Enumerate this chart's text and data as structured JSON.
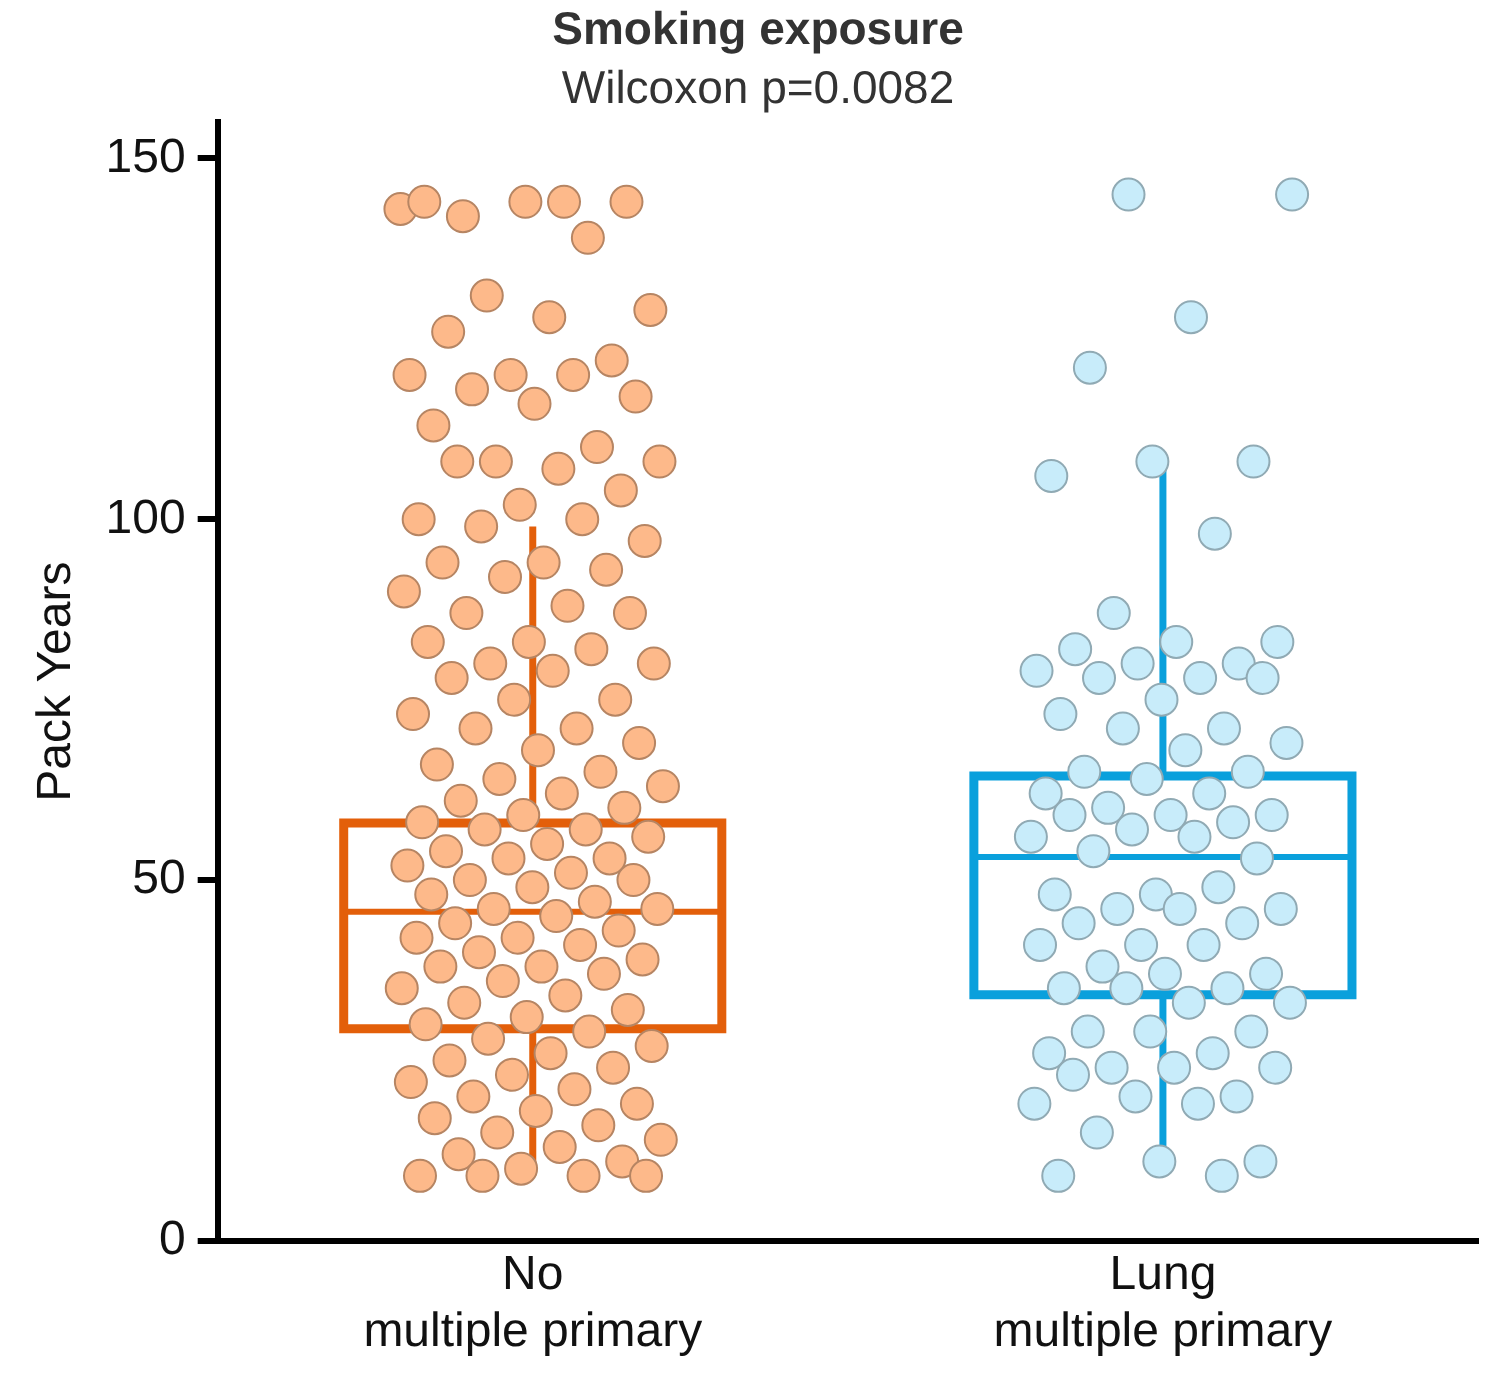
{
  "chart_data": {
    "type": "box",
    "title": "Smoking exposure",
    "subtitle": "Wilcoxon p=0.0082",
    "ylabel": "Pack Years",
    "categories": [
      "No\nmultiple primary",
      "Lung\nmultiple primary"
    ],
    "colors": [
      "#e35f0a",
      "#0aa0dc"
    ],
    "boxes": [
      {
        "low": 9,
        "q1": 29.4,
        "median": 45.6,
        "q3": 57.9,
        "high": 99
      },
      {
        "low": 12,
        "q1": 34.1,
        "median": 53.2,
        "q3": 64.4,
        "high": 108
      }
    ],
    "ylim": [
      0,
      155
    ],
    "yticks": [
      0,
      50,
      100,
      150
    ],
    "grid": false,
    "legend": false,
    "marker": "circle",
    "series": [
      {
        "type": "scatter",
        "color": "#fdb98a",
        "values": [
          143,
          144,
          142,
          144,
          144,
          144,
          139,
          131,
          129,
          128,
          126,
          122,
          120,
          120,
          120,
          118,
          117,
          116,
          113,
          110,
          108,
          108,
          107,
          108,
          104,
          102,
          100,
          100,
          99,
          97,
          94,
          94,
          93,
          92,
          90,
          88,
          87,
          87,
          83,
          83,
          82,
          80,
          80,
          79,
          78,
          75,
          75,
          73,
          71,
          71,
          69,
          68,
          66,
          65,
          64,
          63,
          62,
          61,
          60,
          59,
          58,
          57,
          57,
          56,
          55,
          54,
          53,
          53,
          52,
          51,
          50,
          50,
          49,
          48,
          47,
          46,
          46,
          45,
          44,
          43,
          42,
          42,
          41,
          40,
          39,
          38,
          38,
          37,
          36,
          35,
          34,
          33,
          32,
          31,
          30,
          29,
          28,
          27,
          26,
          25,
          24,
          23,
          22,
          21,
          20,
          19,
          18,
          17,
          16,
          15,
          14,
          13,
          12,
          11,
          10,
          9,
          9,
          9,
          9
        ],
        "x": [
          "No\nmultiple primary",
          "No\nmultiple primary",
          "No\nmultiple primary",
          "No\nmultiple primary",
          "No\nmultiple primary",
          "No\nmultiple primary",
          "No\nmultiple primary",
          "No\nmultiple primary",
          "No\nmultiple primary",
          "No\nmultiple primary",
          "No\nmultiple primary",
          "No\nmultiple primary",
          "No\nmultiple primary",
          "No\nmultiple primary",
          "No\nmultiple primary",
          "No\nmultiple primary",
          "No\nmultiple primary",
          "No\nmultiple primary",
          "No\nmultiple primary",
          "No\nmultiple primary",
          "No\nmultiple primary",
          "No\nmultiple primary",
          "No\nmultiple primary",
          "No\nmultiple primary",
          "No\nmultiple primary",
          "No\nmultiple primary",
          "No\nmultiple primary",
          "No\nmultiple primary",
          "No\nmultiple primary",
          "No\nmultiple primary",
          "No\nmultiple primary",
          "No\nmultiple primary",
          "No\nmultiple primary",
          "No\nmultiple primary",
          "No\nmultiple primary",
          "No\nmultiple primary",
          "No\nmultiple primary",
          "No\nmultiple primary",
          "No\nmultiple primary",
          "No\nmultiple primary",
          "No\nmultiple primary",
          "No\nmultiple primary",
          "No\nmultiple primary",
          "No\nmultiple primary",
          "No\nmultiple primary",
          "No\nmultiple primary",
          "No\nmultiple primary",
          "No\nmultiple primary",
          "No\nmultiple primary",
          "No\nmultiple primary",
          "No\nmultiple primary",
          "No\nmultiple primary",
          "No\nmultiple primary",
          "No\nmultiple primary",
          "No\nmultiple primary",
          "No\nmultiple primary",
          "No\nmultiple primary",
          "No\nmultiple primary",
          "No\nmultiple primary",
          "No\nmultiple primary",
          "No\nmultiple primary",
          "No\nmultiple primary",
          "No\nmultiple primary",
          "No\nmultiple primary",
          "No\nmultiple primary",
          "No\nmultiple primary",
          "No\nmultiple primary",
          "No\nmultiple primary",
          "No\nmultiple primary",
          "No\nmultiple primary",
          "No\nmultiple primary",
          "No\nmultiple primary",
          "No\nmultiple primary",
          "No\nmultiple primary",
          "No\nmultiple primary",
          "No\nmultiple primary",
          "No\nmultiple primary",
          "No\nmultiple primary",
          "No\nmultiple primary",
          "No\nmultiple primary",
          "No\nmultiple primary",
          "No\nmultiple primary",
          "No\nmultiple primary",
          "No\nmultiple primary",
          "No\nmultiple primary",
          "No\nmultiple primary",
          "No\nmultiple primary",
          "No\nmultiple primary",
          "No\nmultiple primary",
          "No\nmultiple primary",
          "No\nmultiple primary",
          "No\nmultiple primary",
          "No\nmultiple primary",
          "No\nmultiple primary",
          "No\nmultiple primary",
          "No\nmultiple primary",
          "No\nmultiple primary",
          "No\nmultiple primary",
          "No\nmultiple primary",
          "No\nmultiple primary",
          "No\nmultiple primary",
          "No\nmultiple primary",
          "No\nmultiple primary",
          "No\nmultiple primary",
          "No\nmultiple primary",
          "No\nmultiple primary",
          "No\nmultiple primary",
          "No\nmultiple primary",
          "No\nmultiple primary",
          "No\nmultiple primary",
          "No\nmultiple primary",
          "No\nmultiple primary",
          "No\nmultiple primary",
          "No\nmultiple primary",
          "No\nmultiple primary",
          "No\nmultiple primary",
          "No\nmultiple primary",
          "No\nmultiple primary",
          "No\nmultiple primary"
        ]
      },
      {
        "type": "scatter",
        "color": "#c8ecfa",
        "values": [
          145,
          145,
          128,
          121,
          108,
          108,
          106,
          98,
          87,
          83,
          83,
          82,
          80,
          80,
          79,
          78,
          78,
          78,
          75,
          73,
          71,
          71,
          69,
          68,
          65,
          65,
          64,
          62,
          62,
          60,
          59,
          59,
          59,
          58,
          57,
          56,
          56,
          54,
          53,
          48,
          48,
          49,
          46,
          46,
          46,
          44,
          44,
          41,
          41,
          41,
          38,
          37,
          37,
          35,
          35,
          35,
          33,
          33,
          29,
          29,
          29,
          26,
          26,
          24,
          24,
          24,
          23,
          20,
          20,
          19,
          19,
          15,
          11,
          11,
          9,
          9
        ],
        "x": [
          "Lung\nmultiple primary",
          "Lung\nmultiple primary",
          "Lung\nmultiple primary",
          "Lung\nmultiple primary",
          "Lung\nmultiple primary",
          "Lung\nmultiple primary",
          "Lung\nmultiple primary",
          "Lung\nmultiple primary",
          "Lung\nmultiple primary",
          "Lung\nmultiple primary",
          "Lung\nmultiple primary",
          "Lung\nmultiple primary",
          "Lung\nmultiple primary",
          "Lung\nmultiple primary",
          "Lung\nmultiple primary",
          "Lung\nmultiple primary",
          "Lung\nmultiple primary",
          "Lung\nmultiple primary",
          "Lung\nmultiple primary",
          "Lung\nmultiple primary",
          "Lung\nmultiple primary",
          "Lung\nmultiple primary",
          "Lung\nmultiple primary",
          "Lung\nmultiple primary",
          "Lung\nmultiple primary",
          "Lung\nmultiple primary",
          "Lung\nmultiple primary",
          "Lung\nmultiple primary",
          "Lung\nmultiple primary",
          "Lung\nmultiple primary",
          "Lung\nmultiple primary",
          "Lung\nmultiple primary",
          "Lung\nmultiple primary",
          "Lung\nmultiple primary",
          "Lung\nmultiple primary",
          "Lung\nmultiple primary",
          "Lung\nmultiple primary",
          "Lung\nmultiple primary",
          "Lung\nmultiple primary",
          "Lung\nmultiple primary",
          "Lung\nmultiple primary",
          "Lung\nmultiple primary",
          "Lung\nmultiple primary",
          "Lung\nmultiple primary",
          "Lung\nmultiple primary",
          "Lung\nmultiple primary",
          "Lung\nmultiple primary",
          "Lung\nmultiple primary",
          "Lung\nmultiple primary",
          "Lung\nmultiple primary",
          "Lung\nmultiple primary",
          "Lung\nmultiple primary",
          "Lung\nmultiple primary",
          "Lung\nmultiple primary",
          "Lung\nmultiple primary",
          "Lung\nmultiple primary",
          "Lung\nmultiple primary",
          "Lung\nmultiple primary",
          "Lung\nmultiple primary",
          "Lung\nmultiple primary",
          "Lung\nmultiple primary",
          "Lung\nmultiple primary",
          "Lung\nmultiple primary",
          "Lung\nmultiple primary",
          "Lung\nmultiple primary",
          "Lung\nmultiple primary",
          "Lung\nmultiple primary",
          "Lung\nmultiple primary",
          "Lung\nmultiple primary",
          "Lung\nmultiple primary",
          "Lung\nmultiple primary",
          "Lung\nmultiple primary",
          "Lung\nmultiple primary",
          "Lung\nmultiple primary",
          "Lung\nmultiple primary",
          "Lung\nmultiple primary"
        ]
      }
    ]
  }
}
